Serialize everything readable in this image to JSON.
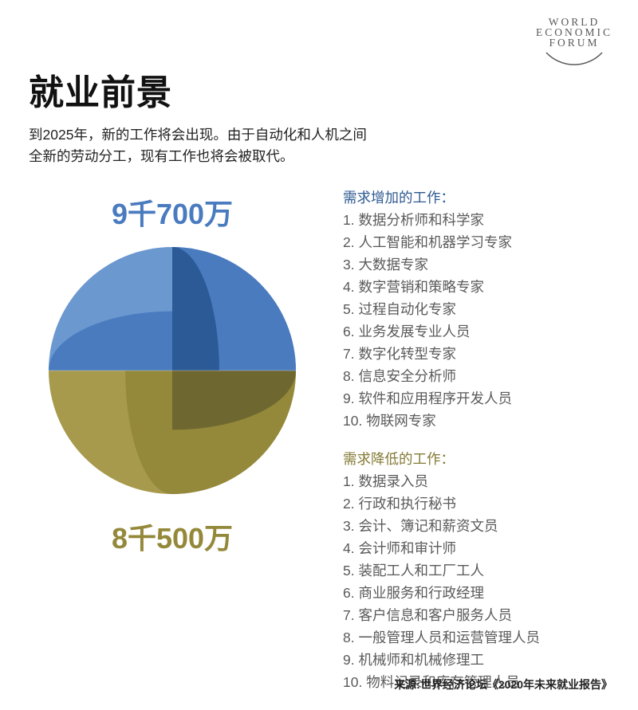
{
  "logo": {
    "line1": "WORLD",
    "line2": "ECONOMIC",
    "line3": "FORUM"
  },
  "title": "就业前景",
  "subtitle_l1": "到2025年，新的工作将会出现。由于自动化和人机之间",
  "subtitle_l2": "全新的劳动分工，现有工作也将会被取代。",
  "chart": {
    "top_value": "9千700万",
    "bottom_value": "8千500万",
    "top_color": "#4a7bbf",
    "bottom_color": "#94883a",
    "colors": {
      "blue_light": "#6a98cf",
      "blue_mid": "#4a7bbf",
      "blue_dark": "#2c5a96",
      "olive_light": "#a79a4d",
      "olive_mid": "#94883a",
      "olive_dark": "#6f6730"
    }
  },
  "increasing": {
    "title": "需求增加的工作：",
    "items": [
      "1. 数据分析师和科学家",
      "2. 人工智能和机器学习专家",
      "3. 大数据专家",
      "4. 数字营销和策略专家",
      "5. 过程自动化专家",
      "6. 业务发展专业人员",
      "7. 数字化转型专家",
      "8. 信息安全分析师",
      "9. 软件和应用程序开发人员",
      "10. 物联网专家"
    ]
  },
  "decreasing": {
    "title": "需求降低的工作：",
    "items": [
      "1. 数据录入员",
      "2. 行政和执行秘书",
      "3. 会计、簿记和薪资文员",
      "4. 会计师和审计师",
      "5. 装配工人和工厂工人",
      "6. 商业服务和行政经理",
      "7. 客户信息和客户服务人员",
      "8. 一般管理人员和运营管理人员",
      "9. 机械师和机械修理工",
      "10. 物料记录和库存管理人员"
    ]
  },
  "source": "来源:世界经济论坛《2020年未来就业报告》"
}
